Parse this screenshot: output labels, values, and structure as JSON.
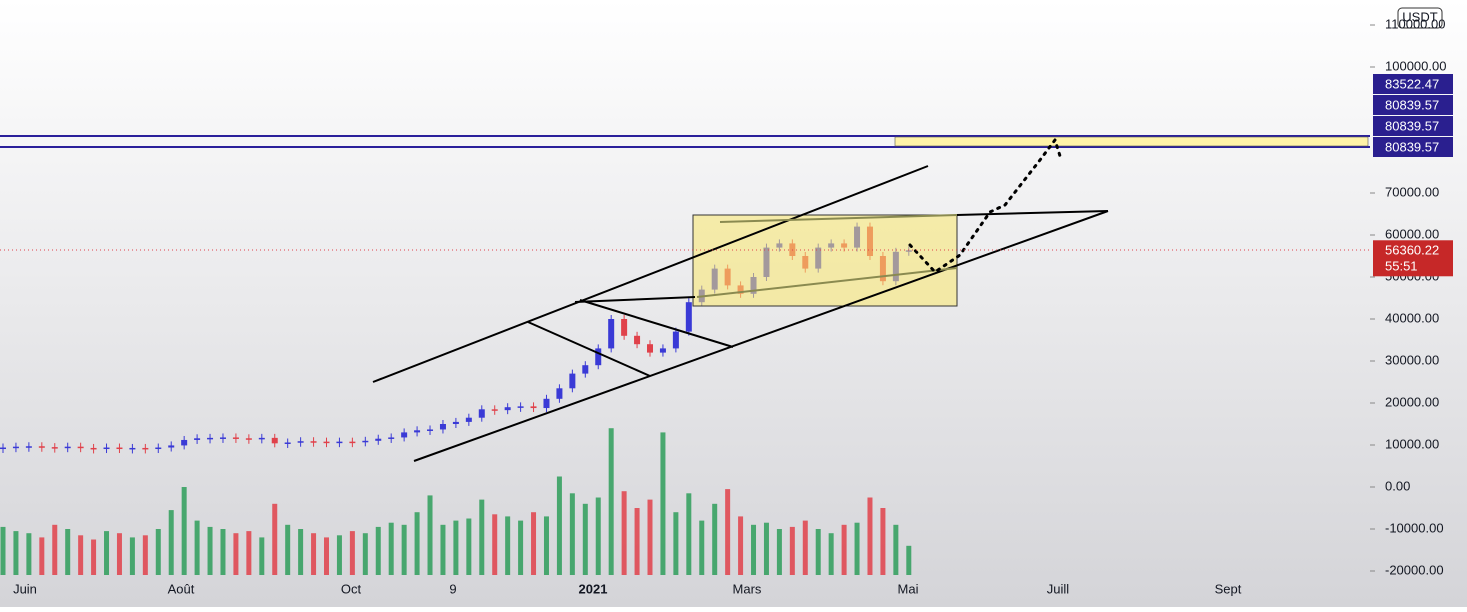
{
  "chart_data": {
    "type": "candlestick",
    "currency": "USDT",
    "closes": [
      9400,
      9600,
      9700,
      9500,
      9400,
      9600,
      9300,
      9200,
      9400,
      9200,
      9300,
      9200,
      9400,
      9900,
      11200,
      11600,
      11700,
      11800,
      11600,
      11500,
      11700,
      10400,
      10600,
      10900,
      10800,
      10700,
      10800,
      10700,
      11000,
      11500,
      11800,
      13000,
      13500,
      13700,
      15000,
      15500,
      16500,
      18500,
      18300,
      19000,
      19200,
      18800,
      21000,
      23500,
      27000,
      29000,
      33000,
      40000,
      36000,
      34000,
      32000,
      33000,
      37000,
      44000,
      47000,
      52000,
      48000,
      46000,
      50000,
      57000,
      58000,
      55000,
      52000,
      57000,
      58000,
      57000,
      62000,
      55000,
      49000,
      56000,
      56360.22
    ],
    "volumes": [
      -9500,
      -10500,
      -11000,
      -12000,
      -9000,
      -10000,
      -11500,
      -12500,
      -10500,
      -11000,
      -12000,
      -11500,
      -10000,
      -5500,
      0,
      -8000,
      -9500,
      -10000,
      -11000,
      -10500,
      -12000,
      -4000,
      -9000,
      -10000,
      -11000,
      -12000,
      -11500,
      -10500,
      -11000,
      -9500,
      -8500,
      -9000,
      -6000,
      -2000,
      -9000,
      -8000,
      -7500,
      -3000,
      -6500,
      -7000,
      -8000,
      -6000,
      -7000,
      2500,
      -1500,
      -4000,
      -2500,
      14000,
      -1000,
      -5000,
      -3000,
      13000,
      -6000,
      -1500,
      -8000,
      -4000,
      -500,
      -7000,
      -9000,
      -8500,
      -10000,
      -9500,
      -8000,
      -10000,
      -11000,
      -9000,
      -8500,
      -2500,
      -5000,
      -9000,
      -14000
    ],
    "up_color": "#3a3ad6",
    "down_color": "#e0414a",
    "volume_up_color": "#2e9e5b",
    "volume_down_color": "#e0414a",
    "ylim": [
      -20950,
      115950
    ],
    "yticks": [
      {
        "value": -20000,
        "label": "-20000.00"
      },
      {
        "value": -10000,
        "label": "-10000.00"
      },
      {
        "value": 0,
        "label": "0.00"
      },
      {
        "value": 10000,
        "label": "10000.00"
      },
      {
        "value": 20000,
        "label": "20000.00"
      },
      {
        "value": 30000,
        "label": "30000.00"
      },
      {
        "value": 40000,
        "label": "40000.00"
      },
      {
        "value": 50000,
        "label": "50000.00"
      },
      {
        "value": 60000,
        "label": "60000.00"
      },
      {
        "value": 70000,
        "label": "70000.00"
      },
      {
        "value": 100000,
        "label": "100000.00"
      },
      {
        "value": 110000,
        "label": "110000.00"
      }
    ],
    "levels": [
      83522.47,
      80839.57,
      80839.57,
      80839.57
    ],
    "last_price": 56360.22,
    "countdown": "55:51",
    "time_labels": [
      "Juin",
      "Août",
      "Oct",
      "9",
      "2021",
      "Mars",
      "Mai",
      "Juill",
      "Sept"
    ]
  }
}
